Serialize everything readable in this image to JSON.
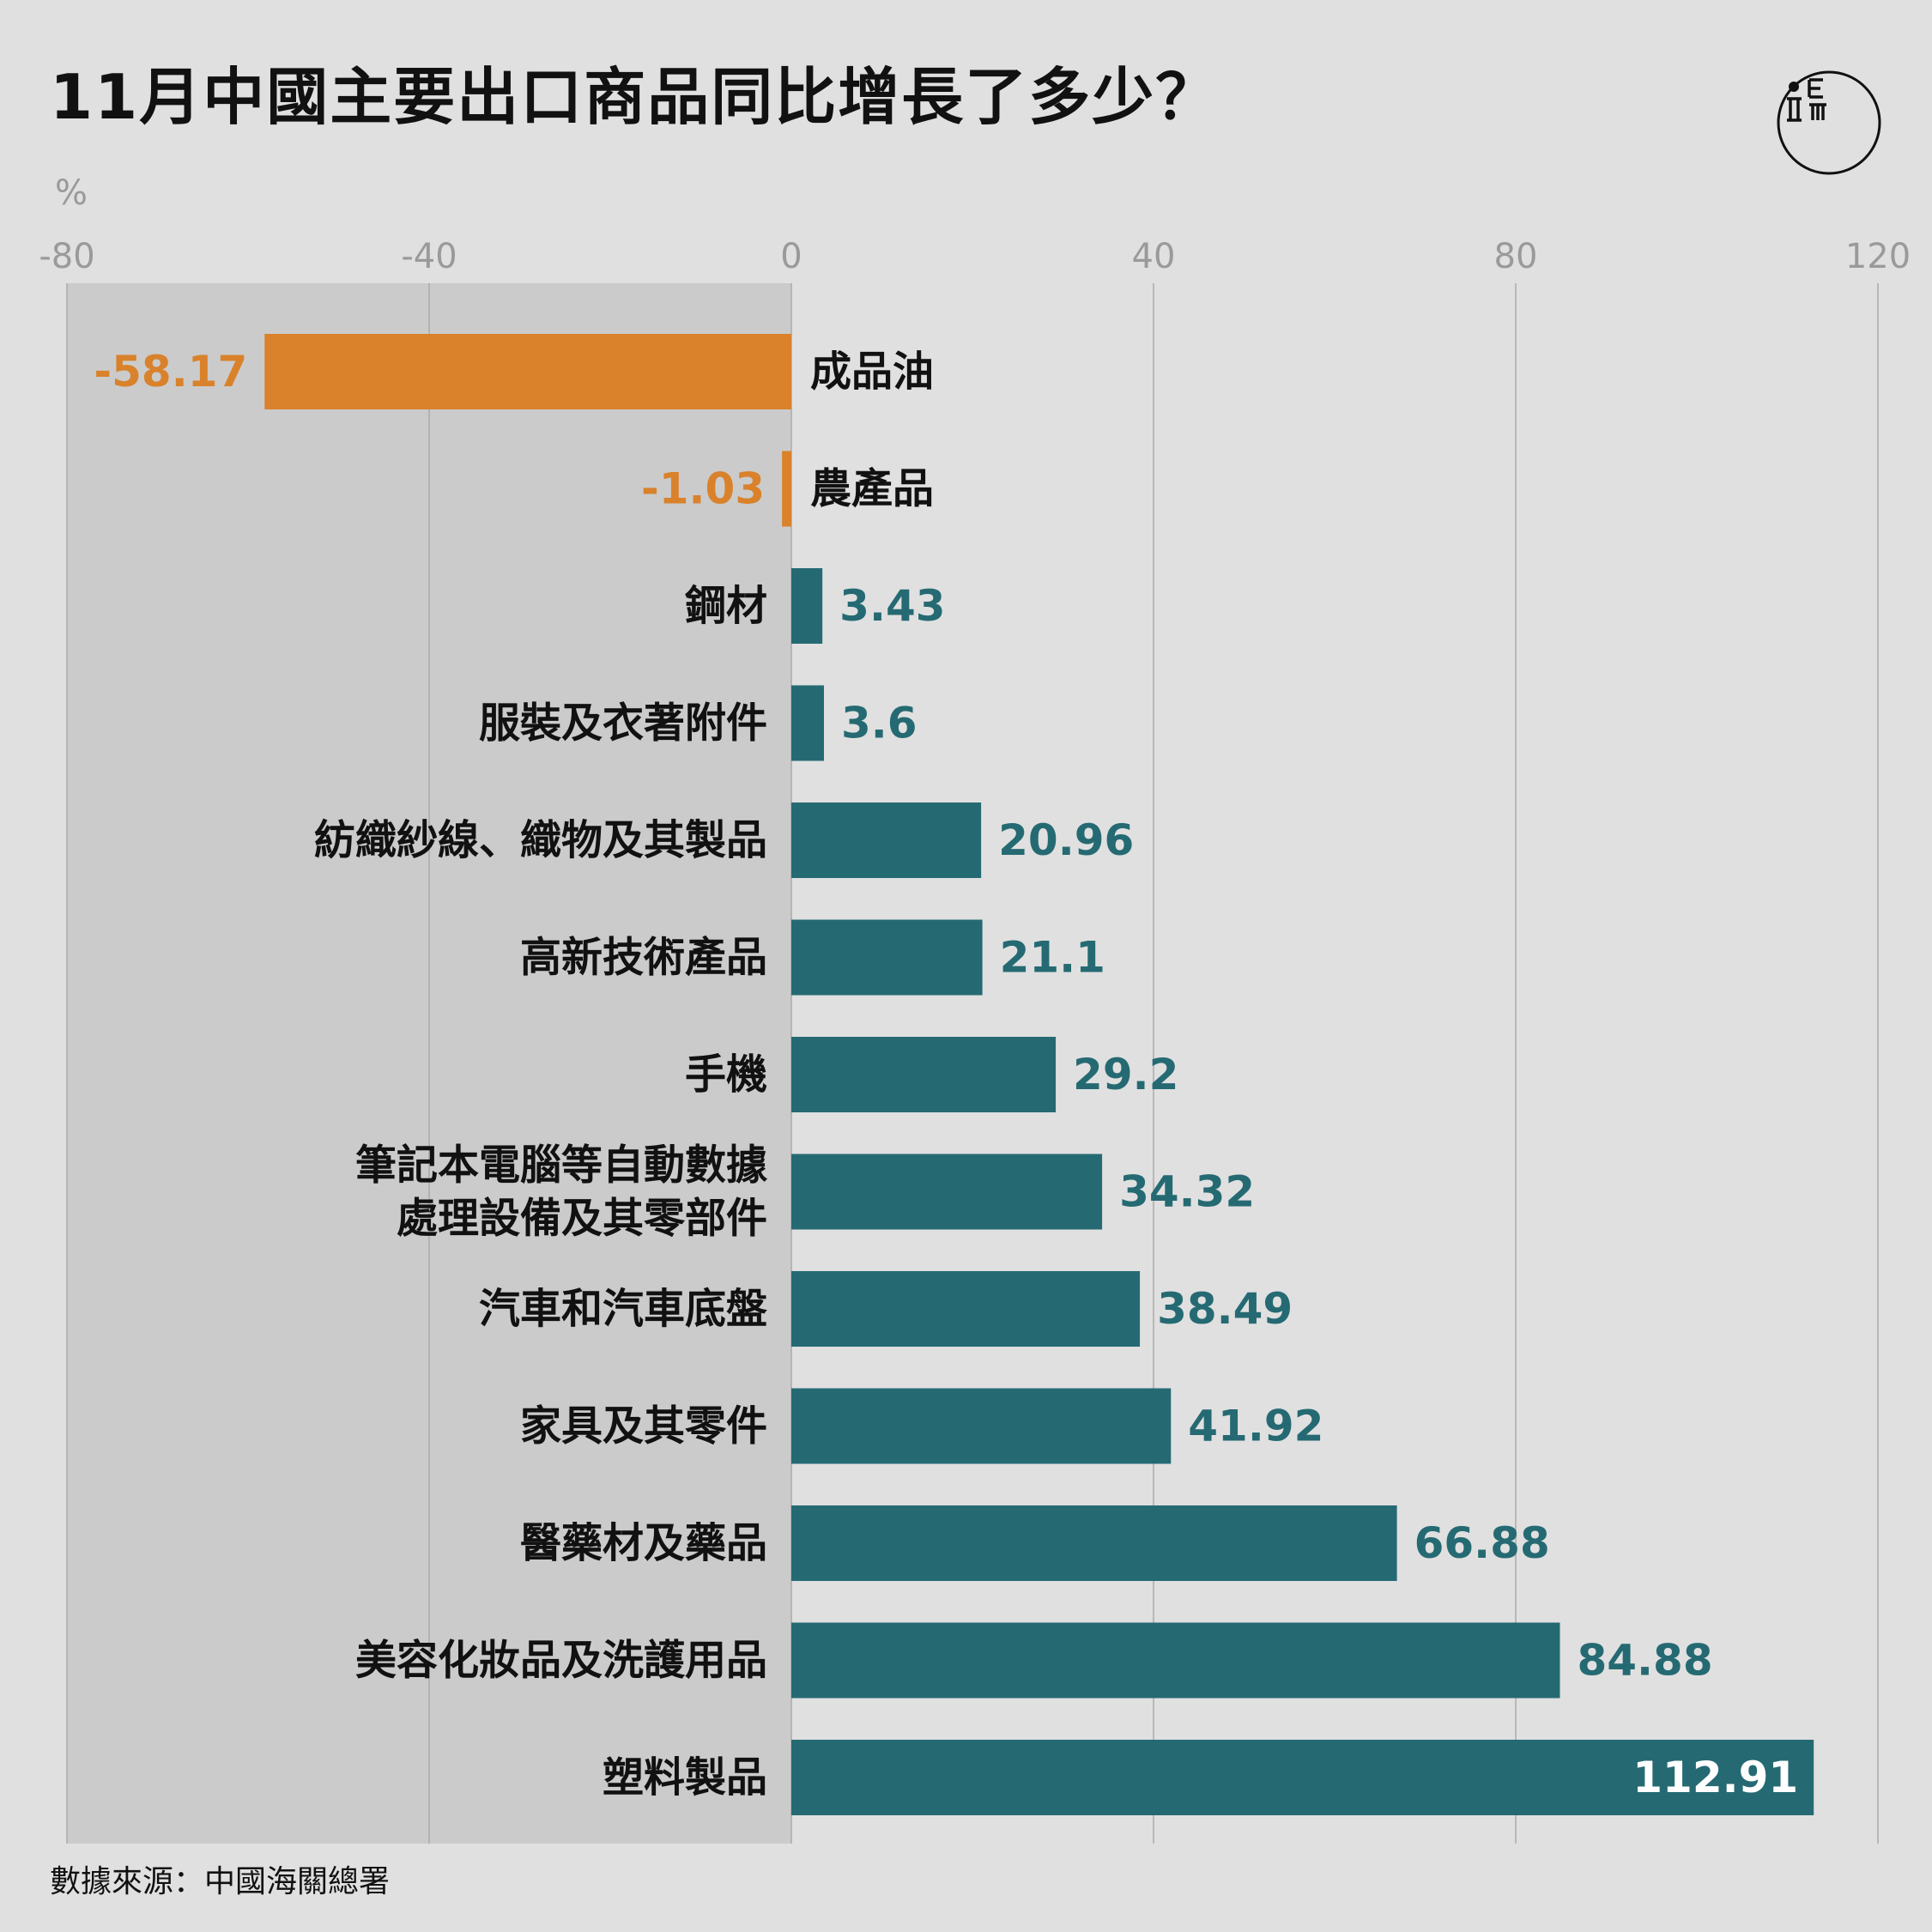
{
  "title": "11月中國主要出口商品同比增長了多少？",
  "source": "數據來源：中國海關總署",
  "colors": {
    "negative": "#d9822b",
    "positive": "#256a73",
    "background": "#e0e0e0",
    "negative_zone": "#cbcbcb",
    "grid": "#aaaaaa"
  },
  "chart_data": {
    "type": "bar",
    "orientation": "horizontal",
    "unit_label": "%",
    "xlim": [
      -80,
      120
    ],
    "xticks": [
      "-80",
      "-40",
      "0",
      "40",
      "80",
      "120"
    ],
    "grid": true,
    "negative_zone_shaded": true,
    "categories": [
      [
        "成品油"
      ],
      [
        "農產品"
      ],
      [
        "鋼材"
      ],
      [
        "服裝及衣著附件"
      ],
      [
        "紡織紗線、織物及其製品"
      ],
      [
        "高新技術產品"
      ],
      [
        "手機"
      ],
      [
        "筆記本電腦等自動數據",
        "處理設備及其零部件"
      ],
      [
        "汽車和汽車底盤"
      ],
      [
        "家具及其零件"
      ],
      [
        "醫藥材及藥品"
      ],
      [
        "美容化妝品及洗護用品"
      ],
      [
        "塑料製品"
      ]
    ],
    "values": [
      -58.17,
      -1.03,
      3.43,
      3.6,
      20.96,
      21.1,
      29.2,
      34.32,
      38.49,
      41.92,
      66.88,
      84.88,
      112.91
    ],
    "value_labels": [
      "-58.17",
      "-1.03",
      "3.43",
      "3.6",
      "20.96",
      "21.1",
      "29.2",
      "34.32",
      "38.49",
      "41.92",
      "66.88",
      "84.88",
      "112.91"
    ]
  },
  "logo": {
    "icon": "initium-logo-icon"
  }
}
